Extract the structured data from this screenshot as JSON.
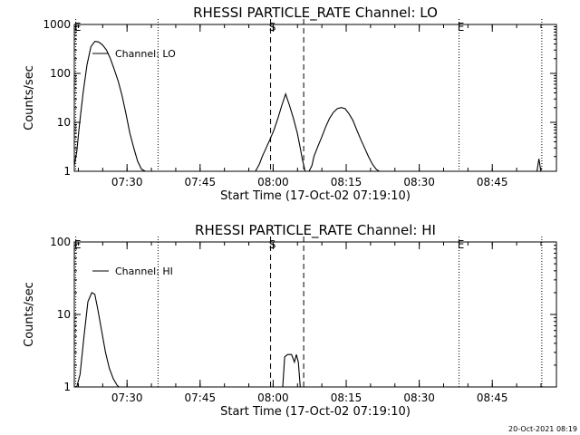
{
  "chart_data": [
    {
      "type": "line",
      "title": "RHESSI PARTICLE_RATE Channel: LO",
      "xlabel": "Start Time (17-Oct-02 07:19:10)",
      "ylabel": "Counts/sec",
      "yscale": "log",
      "ylim": [
        1,
        1000
      ],
      "xlim_min": [
        0,
        99
      ],
      "x_ticks": [
        {
          "min": 10.83,
          "label": "07:30"
        },
        {
          "min": 25.83,
          "label": "07:45"
        },
        {
          "min": 40.83,
          "label": "08:00"
        },
        {
          "min": 55.83,
          "label": "08:15"
        },
        {
          "min": 70.83,
          "label": "08:30"
        },
        {
          "min": 85.83,
          "label": "08:45"
        }
      ],
      "y_ticks": [
        {
          "value": 1,
          "label": "1"
        },
        {
          "value": 10,
          "label": "10"
        },
        {
          "value": 100,
          "label": "100"
        },
        {
          "value": 1000,
          "label": "1000"
        }
      ],
      "legend": "Channel: LO",
      "legend_position": "top-left",
      "markers": [
        {
          "label": "E",
          "min": 0.3,
          "style": "dotted"
        },
        {
          "label": "",
          "min": 17.2,
          "style": "dotted"
        },
        {
          "label": "S",
          "min": 40.3,
          "style": "dashed"
        },
        {
          "label": "",
          "min": 47.1,
          "style": "dashed"
        },
        {
          "label": "E",
          "min": 79.0,
          "style": "dotted"
        },
        {
          "label": "",
          "min": 96.0,
          "style": "dotted"
        }
      ],
      "series": [
        {
          "name": "Channel: LO",
          "x": [
            0.0,
            0.5,
            1.0,
            1.8,
            2.6,
            3.4,
            4.2,
            5.0,
            5.8,
            6.6,
            7.4,
            8.2,
            9.0,
            9.8,
            10.6,
            11.4,
            12.2,
            13.0,
            13.8,
            14.6,
            37.2,
            38.0,
            38.6,
            39.4,
            40.2,
            41.0,
            41.8,
            42.6,
            43.4,
            44.2,
            45.0,
            45.8,
            46.4,
            46.8,
            47.4,
            48.2,
            48.8,
            49.2,
            50.0,
            50.8,
            51.6,
            52.4,
            53.2,
            54.0,
            54.8,
            55.6,
            56.4,
            57.2,
            58.0,
            58.8,
            59.6,
            60.4,
            61.2,
            62.0,
            62.6,
            63.2,
            95.0,
            95.4,
            95.8
          ],
          "y": [
            1.3,
            2.5,
            8,
            40,
            150,
            350,
            450,
            440,
            380,
            300,
            200,
            120,
            70,
            35,
            15,
            6,
            3,
            1.6,
            1.1,
            1,
            1,
            1.4,
            2,
            3,
            4.5,
            7,
            12,
            22,
            38,
            22,
            12,
            6,
            3,
            1.8,
            1,
            1,
            1.3,
            2,
            3.2,
            5,
            8,
            12,
            16,
            19,
            20,
            19,
            15,
            11,
            7,
            4.5,
            3,
            2,
            1.4,
            1.1,
            1,
            1,
            1,
            1.8,
            1
          ]
        }
      ]
    },
    {
      "type": "line",
      "title": "RHESSI PARTICLE_RATE Channel: HI",
      "xlabel": "Start Time (17-Oct-02 07:19:10)",
      "ylabel": "Counts/sec",
      "yscale": "log",
      "ylim": [
        1,
        100
      ],
      "xlim_min": [
        0,
        99
      ],
      "x_ticks": [
        {
          "min": 10.83,
          "label": "07:30"
        },
        {
          "min": 25.83,
          "label": "07:45"
        },
        {
          "min": 40.83,
          "label": "08:00"
        },
        {
          "min": 55.83,
          "label": "08:15"
        },
        {
          "min": 70.83,
          "label": "08:30"
        },
        {
          "min": 85.83,
          "label": "08:45"
        }
      ],
      "y_ticks": [
        {
          "value": 1,
          "label": "1"
        },
        {
          "value": 10,
          "label": "10"
        },
        {
          "value": 100,
          "label": "100"
        }
      ],
      "legend": "Channel: HI",
      "legend_position": "top-left",
      "markers": [
        {
          "label": "E",
          "min": 0.3,
          "style": "dotted"
        },
        {
          "label": "",
          "min": 17.2,
          "style": "dotted"
        },
        {
          "label": "S",
          "min": 40.3,
          "style": "dashed"
        },
        {
          "label": "",
          "min": 47.1,
          "style": "dashed"
        },
        {
          "label": "E",
          "min": 79.0,
          "style": "dotted"
        },
        {
          "label": "",
          "min": 96.0,
          "style": "dotted"
        }
      ],
      "series": [
        {
          "name": "Channel: HI",
          "x": [
            0.5,
            1.2,
            2.0,
            2.8,
            3.6,
            4.2,
            4.8,
            5.6,
            6.4,
            7.2,
            8.0,
            8.8,
            9.2,
            42.8,
            43.2,
            43.8,
            44.6,
            45.2,
            45.6,
            46.0,
            46.4
          ],
          "y": [
            1,
            1.5,
            5,
            15,
            20,
            19,
            12,
            6,
            3,
            1.8,
            1.3,
            1.05,
            1,
            1,
            2.6,
            2.8,
            2.8,
            2.2,
            2.8,
            2.2,
            1
          ]
        }
      ]
    }
  ],
  "footer": {
    "timestamp": "20-Oct-2021 08:19"
  }
}
